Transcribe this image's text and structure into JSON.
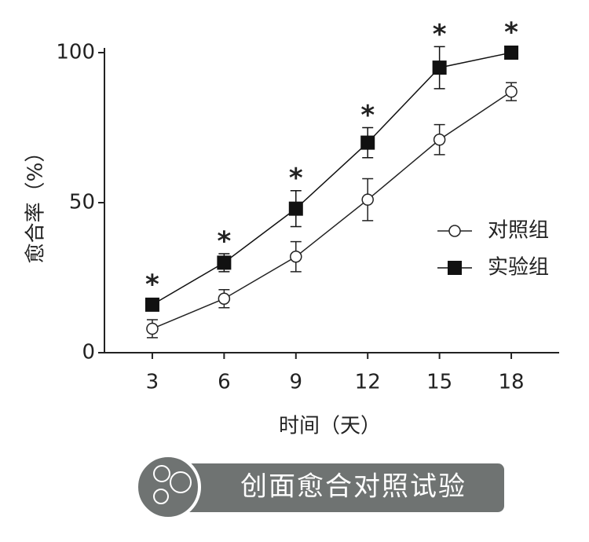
{
  "chart_data": {
    "type": "line",
    "x_label": "时间（天）",
    "y_label": "愈合率（%）",
    "caption": "创面愈合对照试验",
    "x": [
      3,
      6,
      9,
      12,
      15,
      18
    ],
    "xlim": [
      1,
      20
    ],
    "xticks": [
      3,
      6,
      9,
      12,
      15,
      18
    ],
    "ylim": [
      0,
      100
    ],
    "yticks": [
      0,
      50,
      100
    ],
    "legend": "right",
    "series": [
      {
        "name": "对照组",
        "color": "#222222",
        "marker": "open-circle",
        "values": [
          8,
          18,
          32,
          51,
          71,
          87
        ],
        "errors": [
          3,
          3,
          5,
          7,
          5,
          3
        ]
      },
      {
        "name": "实验组",
        "color": "#111111",
        "marker": "filled-square",
        "values": [
          16,
          30,
          48,
          70,
          95,
          100
        ],
        "errors": [
          2,
          3,
          6,
          5,
          7,
          1
        ]
      }
    ],
    "significance_labels": [
      "*",
      "*",
      "*",
      "*",
      "*",
      "*"
    ]
  }
}
